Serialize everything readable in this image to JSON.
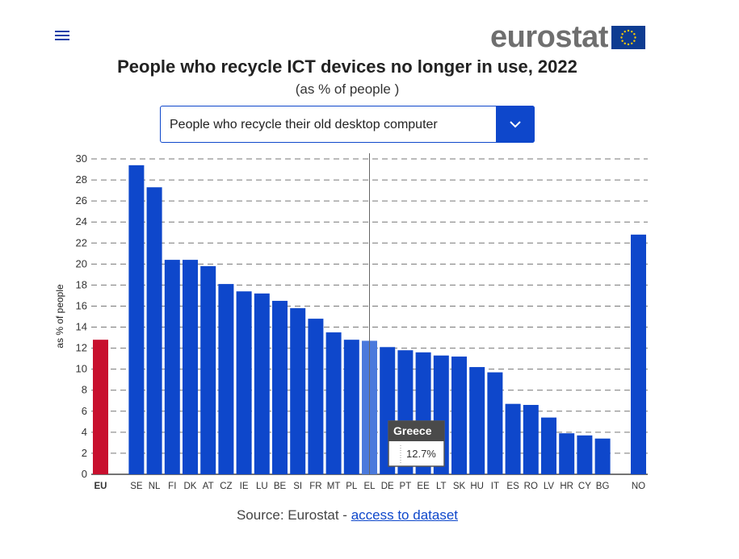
{
  "header": {
    "menu_icon": "hamburger-menu-icon",
    "logo_text": "eurostat",
    "logo_flag_icon": "eu-flag-icon"
  },
  "title": "People who recycle ICT devices no longer in use, 2022",
  "subtitle": "(as % of people )",
  "dropdown": {
    "selected": "People who recycle their old desktop computer",
    "icon": "chevron-down-icon"
  },
  "tooltip": {
    "country": "Greece",
    "value_text": "12.7%"
  },
  "source": {
    "prefix": "Source: Eurostat - ",
    "link": "access to dataset"
  },
  "colors": {
    "bar": "#0e47cb",
    "eu_bar": "#c8102e",
    "highlight_bar": "#4a79dc"
  },
  "chart_data": {
    "type": "bar",
    "title": "People who recycle ICT devices no longer in use, 2022",
    "ylabel": "as % of people",
    "xlabel": "",
    "ylim": [
      0,
      30
    ],
    "yticks": [
      0,
      2,
      4,
      6,
      8,
      10,
      12,
      14,
      16,
      18,
      20,
      22,
      24,
      26,
      28,
      30
    ],
    "grid": true,
    "categories": [
      "EU",
      "SE",
      "NL",
      "FI",
      "DK",
      "AT",
      "CZ",
      "IE",
      "LU",
      "BE",
      "SI",
      "FR",
      "MT",
      "PL",
      "EL",
      "DE",
      "PT",
      "EE",
      "LT",
      "SK",
      "HU",
      "IT",
      "ES",
      "RO",
      "LV",
      "HR",
      "CY",
      "BG",
      "NO"
    ],
    "values": [
      12.8,
      29.4,
      27.3,
      20.4,
      20.4,
      19.8,
      18.1,
      17.4,
      17.2,
      16.5,
      15.8,
      14.8,
      13.5,
      12.8,
      12.7,
      12.1,
      11.8,
      11.6,
      11.3,
      11.2,
      10.2,
      9.7,
      6.7,
      6.6,
      5.4,
      3.9,
      3.7,
      3.4,
      22.8
    ],
    "highlighted": "EL"
  }
}
